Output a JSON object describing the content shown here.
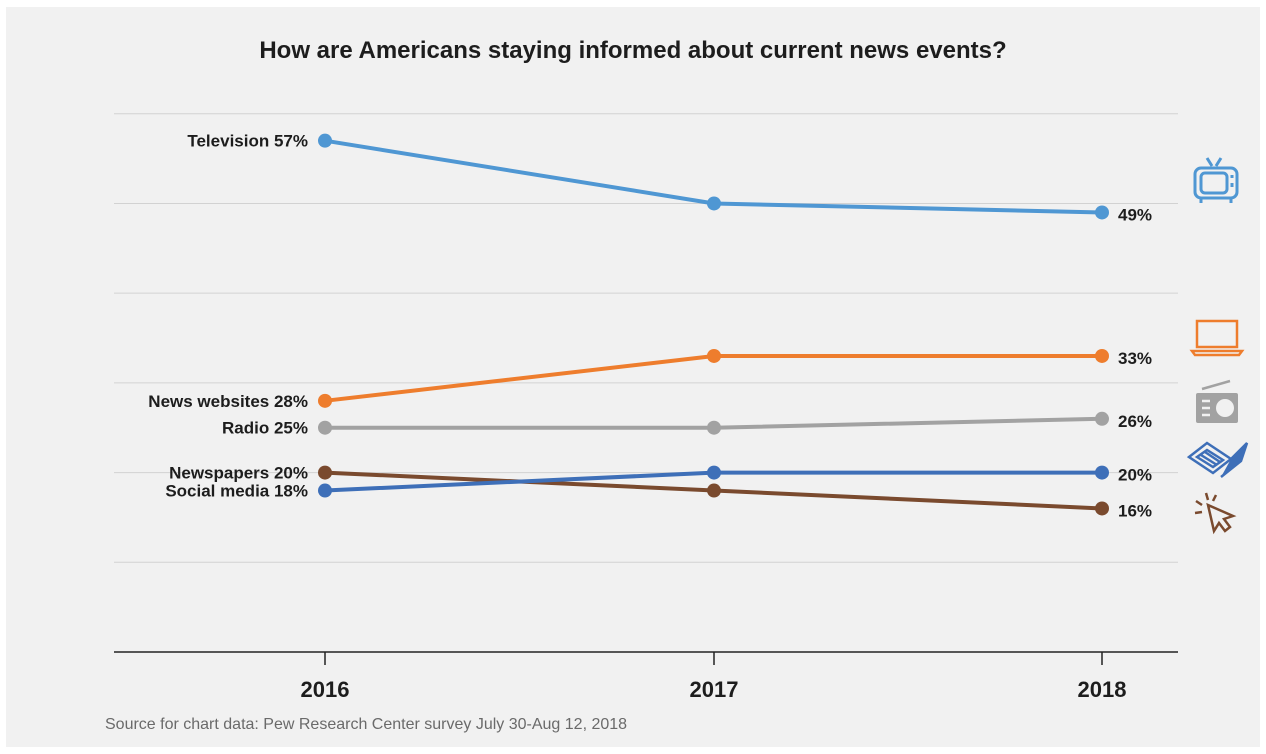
{
  "chart_data": {
    "type": "line",
    "title": "How are Americans staying informed about current news events?",
    "source": "Source for chart data: Pew Research Center survey July 30-Aug 12, 2018",
    "x": [
      "2016",
      "2017",
      "2018"
    ],
    "ylim": [
      0,
      68
    ],
    "grid": true,
    "series": [
      {
        "key": "television",
        "name": "Television",
        "color": "#4f97d3",
        "values": [
          57,
          50,
          49
        ],
        "start_label": "Television 57%",
        "end_label": "49%",
        "icon": "television-icon"
      },
      {
        "key": "news_websites",
        "name": "News websites",
        "color": "#ee7d2d",
        "values": [
          28,
          33,
          33
        ],
        "start_label": "News websites 28%",
        "end_label": "33%",
        "icon": "laptop-icon"
      },
      {
        "key": "radio",
        "name": "Radio",
        "color": "#a2a2a2",
        "values": [
          25,
          25,
          26
        ],
        "start_label": "Radio 25%",
        "end_label": "26%",
        "icon": "radio-icon"
      },
      {
        "key": "newspapers",
        "name": "Newspapers",
        "color": "#7a4a2e",
        "values": [
          20,
          18,
          16
        ],
        "start_label": "Newspapers 20%",
        "end_label": "16%",
        "icon": "cursor-click-icon"
      },
      {
        "key": "social_media",
        "name": "Social media",
        "color": "#3e6fb8",
        "values": [
          18,
          20,
          20
        ],
        "start_label": "Social media 18%",
        "end_label": "20%",
        "icon": "newspaper-icon"
      }
    ]
  }
}
